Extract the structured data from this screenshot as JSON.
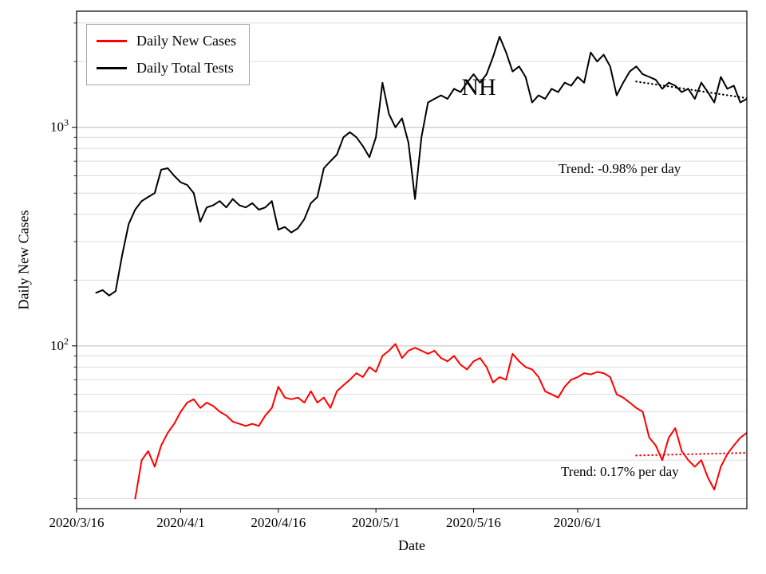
{
  "annotations": {
    "state_label": "NH",
    "tests_trend_label": "Trend: -0.98% per day",
    "cases_trend_label": "Trend: 0.17% per day"
  },
  "legend": {
    "items": [
      {
        "label": "Daily New Cases",
        "color": "#ff0000"
      },
      {
        "label": "Daily Total Tests",
        "color": "#000000"
      }
    ]
  },
  "axes": {
    "x_label": "Date",
    "y_label": "Daily New Cases",
    "x_start_date": "2020/3/16",
    "x_range_days": [
      0,
      103
    ],
    "y_scale": "log",
    "y_range": [
      18,
      3400
    ],
    "grid": "horizontal major and minor gridlines",
    "x_ticks": [
      {
        "day": 0,
        "label": "2020/3/16"
      },
      {
        "day": 16,
        "label": "2020/4/1"
      },
      {
        "day": 31,
        "label": "2020/4/16"
      },
      {
        "day": 46,
        "label": "2020/5/1"
      },
      {
        "day": 61,
        "label": "2020/5/16"
      },
      {
        "day": 77,
        "label": "2020/6/1"
      }
    ],
    "y_ticks": [
      {
        "value": 100,
        "mantissa": "10",
        "exponent": "2"
      },
      {
        "value": 1000,
        "mantissa": "10",
        "exponent": "3"
      }
    ]
  },
  "chart_data": {
    "type": "line",
    "title": "NH daily new COVID cases and daily total tests",
    "xlabel": "Date",
    "ylabel": "Daily New Cases",
    "x_unit": "days since 2020/3/16",
    "x_start_date": "2020/3/16",
    "xlim_days": [
      0,
      103
    ],
    "ylim": [
      18,
      3400
    ],
    "yscale": "log",
    "legend_position": "upper-left",
    "series": [
      {
        "name": "Daily New Cases",
        "color": "#ff0000",
        "start_offset_days": 9,
        "values": [
          20,
          30,
          33,
          28,
          35,
          40,
          44,
          50,
          55,
          57,
          52,
          55,
          53,
          50,
          48,
          45,
          44,
          43,
          44,
          43,
          48,
          52,
          65,
          58,
          57,
          58,
          55,
          62,
          55,
          58,
          52,
          62,
          66,
          70,
          75,
          72,
          80,
          76,
          90,
          95,
          102,
          88,
          95,
          98,
          95,
          92,
          95,
          88,
          85,
          90,
          82,
          78,
          85,
          88,
          80,
          68,
          72,
          70,
          92,
          85,
          80,
          78,
          72,
          62,
          60,
          58,
          65,
          70,
          72,
          75,
          74,
          76,
          75,
          72,
          60,
          58,
          55,
          52,
          50,
          38,
          35,
          30,
          38,
          42,
          33,
          30,
          28,
          30,
          25,
          22,
          28,
          32,
          35,
          38,
          40
        ]
      },
      {
        "name": "Daily Total Tests",
        "color": "#000000",
        "start_offset_days": 3,
        "values": [
          175,
          180,
          170,
          178,
          260,
          360,
          420,
          460,
          480,
          500,
          640,
          650,
          600,
          560,
          545,
          500,
          370,
          430,
          440,
          460,
          430,
          470,
          440,
          430,
          450,
          420,
          430,
          460,
          340,
          350,
          330,
          345,
          380,
          450,
          480,
          650,
          700,
          750,
          900,
          950,
          900,
          820,
          730,
          900,
          1600,
          1150,
          1000,
          1100,
          850,
          470,
          900,
          1300,
          1350,
          1400,
          1350,
          1500,
          1450,
          1600,
          1750,
          1600,
          1750,
          2100,
          2600,
          2200,
          1800,
          1900,
          1700,
          1300,
          1400,
          1350,
          1500,
          1450,
          1600,
          1550,
          1700,
          1600,
          2200,
          2000,
          2150,
          1900,
          1400,
          1600,
          1800,
          1900,
          1750,
          1700,
          1650,
          1500,
          1600,
          1550,
          1450,
          1500,
          1350,
          1600,
          1450,
          1300,
          1700,
          1500,
          1550,
          1300,
          1350
        ]
      }
    ],
    "trend_lines": [
      {
        "name": "cases-trend",
        "series": "Daily New Cases",
        "color": "#ff0000",
        "style": "dotted",
        "start_day": 86,
        "end_day": 103,
        "start_value": 31.5,
        "end_value": 32.4,
        "rate_label": "0.17% per day"
      },
      {
        "name": "tests-trend",
        "series": "Daily Total Tests",
        "color": "#000000",
        "style": "dotted",
        "start_day": 86,
        "end_day": 103,
        "start_value": 1620,
        "end_value": 1360,
        "rate_label": "-0.98% per day"
      }
    ]
  }
}
